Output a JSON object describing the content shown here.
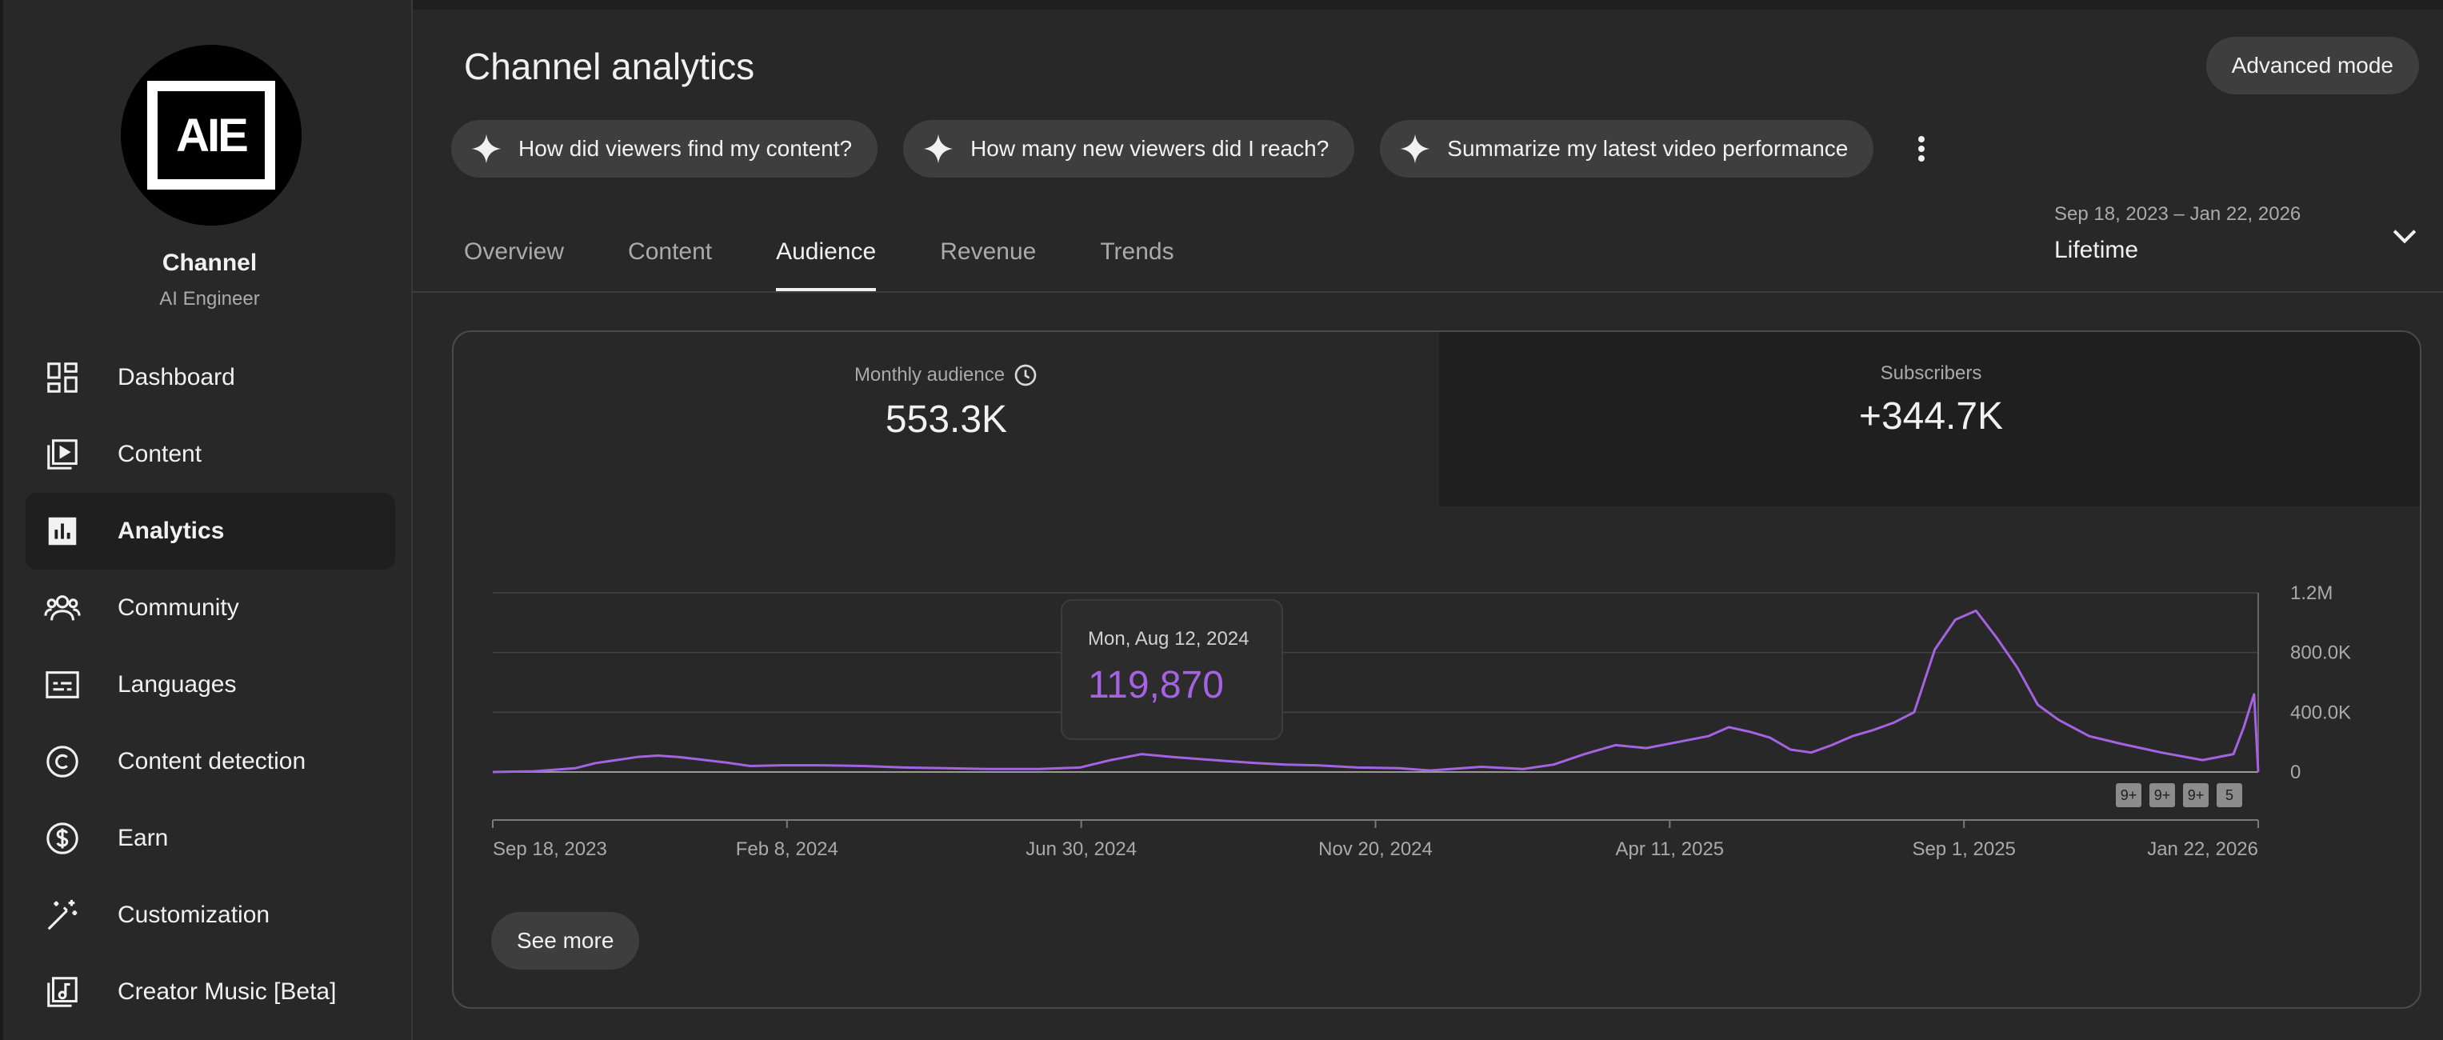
{
  "sidebar": {
    "avatar_text": "AIE",
    "channel_name": "Channel",
    "channel_handle": "AI Engineer",
    "items": [
      {
        "label": "Dashboard",
        "icon": "dashboard-icon"
      },
      {
        "label": "Content",
        "icon": "content-icon"
      },
      {
        "label": "Analytics",
        "icon": "analytics-icon"
      },
      {
        "label": "Community",
        "icon": "community-icon"
      },
      {
        "label": "Languages",
        "icon": "subtitles-icon"
      },
      {
        "label": "Content detection",
        "icon": "copyright-icon"
      },
      {
        "label": "Earn",
        "icon": "dollar-icon"
      },
      {
        "label": "Customization",
        "icon": "magic-wand-icon"
      },
      {
        "label": "Creator Music [Beta]",
        "icon": "music-library-icon"
      }
    ],
    "active_index": 2
  },
  "header": {
    "title": "Channel analytics",
    "advanced_mode_label": "Advanced mode",
    "chips": [
      "How did viewers find my content?",
      "How many new viewers did I reach?",
      "Summarize my latest video performance"
    ]
  },
  "tabs": {
    "items": [
      "Overview",
      "Content",
      "Audience",
      "Revenue",
      "Trends"
    ],
    "active": "Audience"
  },
  "date_range": {
    "dates": "Sep 18, 2023 – Jan 22, 2026",
    "label": "Lifetime"
  },
  "metrics": {
    "monthly_audience": {
      "label": "Monthly audience",
      "value": "553.3K"
    },
    "subscribers": {
      "label": "Subscribers",
      "value": "+344.7K"
    }
  },
  "tooltip": {
    "date": "Mon, Aug 12, 2024",
    "value": "119,870"
  },
  "badges": [
    "9+",
    "9+",
    "9+",
    "5"
  ],
  "see_more_label": "See more",
  "colors": {
    "line": "#a463e0",
    "background": "#282828",
    "panel_dark": "#1f1f1f"
  },
  "chart_data": {
    "type": "line",
    "title": "Subscribers",
    "x_tick_labels": [
      "Sep 18, 2023",
      "Feb 8, 2024",
      "Jun 30, 2024",
      "Nov 20, 2024",
      "Apr 11, 2025",
      "Sep 1, 2025",
      "Jan 22, 2026"
    ],
    "y_tick_labels": [
      "0",
      "400.0K",
      "800.0K",
      "1.2M"
    ],
    "ylim": [
      0,
      1200000
    ],
    "x_day_range": [
      0,
      857
    ],
    "series": [
      {
        "name": "Subscribers",
        "points": [
          [
            0,
            0
          ],
          [
            20,
            5000
          ],
          [
            40,
            25000
          ],
          [
            50,
            60000
          ],
          [
            60,
            80000
          ],
          [
            70,
            100000
          ],
          [
            80,
            110000
          ],
          [
            90,
            100000
          ],
          [
            100,
            85000
          ],
          [
            115,
            60000
          ],
          [
            125,
            40000
          ],
          [
            140,
            45000
          ],
          [
            160,
            45000
          ],
          [
            180,
            40000
          ],
          [
            200,
            30000
          ],
          [
            220,
            25000
          ],
          [
            240,
            20000
          ],
          [
            265,
            20000
          ],
          [
            285,
            30000
          ],
          [
            300,
            80000
          ],
          [
            315,
            119870
          ],
          [
            330,
            100000
          ],
          [
            350,
            80000
          ],
          [
            370,
            60000
          ],
          [
            385,
            50000
          ],
          [
            400,
            45000
          ],
          [
            420,
            30000
          ],
          [
            440,
            25000
          ],
          [
            455,
            10000
          ],
          [
            465,
            20000
          ],
          [
            480,
            35000
          ],
          [
            500,
            20000
          ],
          [
            515,
            50000
          ],
          [
            530,
            120000
          ],
          [
            545,
            180000
          ],
          [
            560,
            160000
          ],
          [
            575,
            200000
          ],
          [
            590,
            240000
          ],
          [
            600,
            300000
          ],
          [
            610,
            270000
          ],
          [
            620,
            230000
          ],
          [
            630,
            150000
          ],
          [
            640,
            130000
          ],
          [
            650,
            180000
          ],
          [
            660,
            240000
          ],
          [
            670,
            280000
          ],
          [
            680,
            330000
          ],
          [
            690,
            400000
          ],
          [
            700,
            820000
          ],
          [
            710,
            1020000
          ],
          [
            720,
            1080000
          ],
          [
            730,
            900000
          ],
          [
            740,
            700000
          ],
          [
            750,
            450000
          ],
          [
            760,
            350000
          ],
          [
            775,
            240000
          ],
          [
            790,
            190000
          ],
          [
            810,
            130000
          ],
          [
            830,
            80000
          ],
          [
            845,
            120000
          ],
          [
            850,
            300000
          ],
          [
            855,
            520000
          ],
          [
            857,
            0
          ]
        ]
      }
    ]
  }
}
